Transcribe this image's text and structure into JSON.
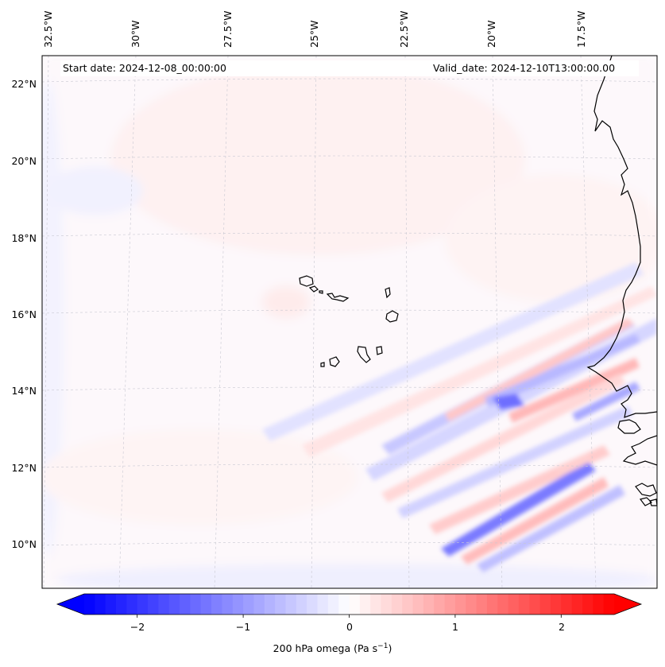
{
  "map": {
    "start_date": "Start date: 2024-12-08_00:00:00",
    "valid_date": "Valid_date: 2024-12-10T13:00:00.00",
    "lon_labels": [
      "32.5°W",
      "30°W",
      "27.5°W",
      "25°W",
      "22.5°W",
      "20°W",
      "17.5°W"
    ],
    "lat_labels": [
      "22°N",
      "20°N",
      "18°N",
      "16°N",
      "14°N",
      "12°N",
      "10°N"
    ],
    "variable": "200 hPa omega",
    "units": "Pa s",
    "units_exponent": "−1"
  },
  "colorbar": {
    "min": -2.5,
    "max": 2.5,
    "ticks": [
      "−2",
      "−1",
      "0",
      "1",
      "2"
    ],
    "tick_values": [
      -2,
      -1,
      0,
      1,
      2
    ],
    "colors": {
      "negative": "#0000ff",
      "neutral": "#ffffff",
      "positive": "#ff0000"
    }
  },
  "colors": {
    "coastline": "#000000",
    "gridline": "#c8c8d2",
    "frame": "#000000"
  }
}
